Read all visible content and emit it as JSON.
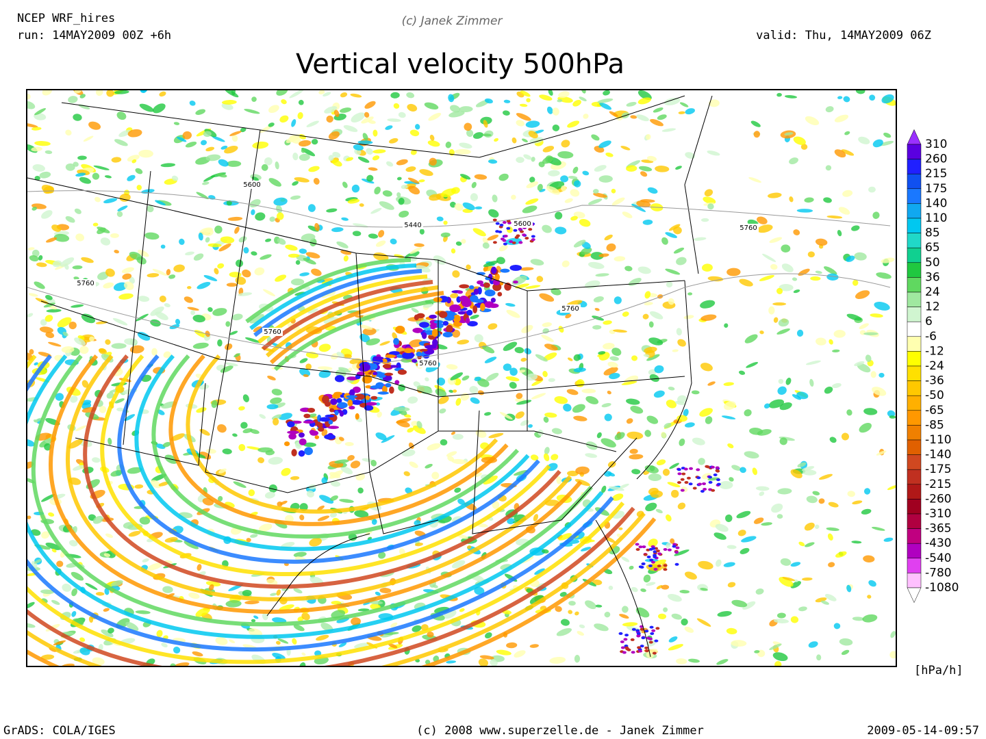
{
  "header": {
    "model": "NCEP WRF_hires",
    "run": "run: 14MAY2009 00Z +6h",
    "credit": "(c) Janek Zimmer",
    "valid": "valid: Thu, 14MAY2009 06Z",
    "title": "Vertical velocity 500hPa"
  },
  "map": {
    "contour_labels": [
      5600,
      5440,
      5600,
      5760,
      5760,
      5760,
      5760,
      5760
    ]
  },
  "colorbar": {
    "levels": [
      310,
      260,
      215,
      175,
      140,
      110,
      85,
      65,
      50,
      36,
      24,
      12,
      6,
      -6,
      -12,
      -24,
      -36,
      -50,
      -65,
      -85,
      -110,
      -140,
      -175,
      -215,
      -260,
      -310,
      -365,
      -430,
      -540,
      -780,
      -1080
    ],
    "colors": [
      "#9a30ff",
      "#5a00e0",
      "#2020ff",
      "#1050f0",
      "#1a78ff",
      "#10a8f0",
      "#00c8f0",
      "#20d8c8",
      "#10d090",
      "#20c840",
      "#60d860",
      "#a0e8a0",
      "#d0f5d0",
      "#ffffff",
      "#ffffb0",
      "#ffff00",
      "#ffe000",
      "#ffc800",
      "#ffb000",
      "#ff9800",
      "#f08000",
      "#e06000",
      "#d04820",
      "#c03020",
      "#b01818",
      "#a00020",
      "#b00040",
      "#c00080",
      "#b000c0",
      "#e040f0",
      "#ffc0ff",
      "#ffffff"
    ],
    "unit": "[hPa/h]"
  },
  "footer": {
    "left": "GrADS: COLA/IGES",
    "center": "(c) 2008 www.superzelle.de - Janek Zimmer",
    "right": "2009-05-14-09:57"
  }
}
